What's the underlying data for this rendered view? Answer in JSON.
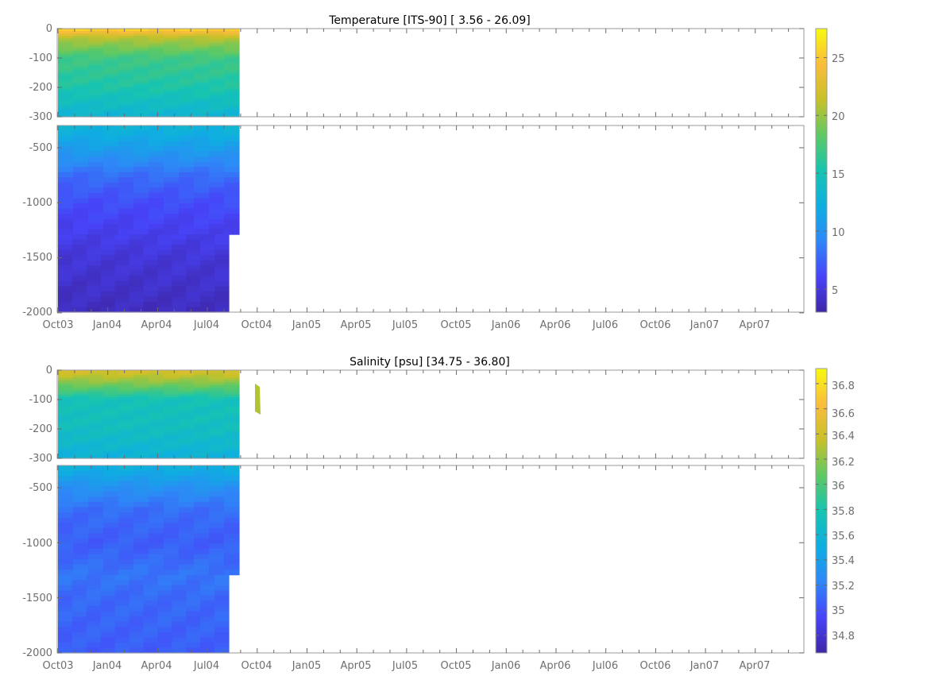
{
  "chart_data": [
    {
      "type": "heatmap",
      "title": "Temperature [ITS-90]   [ 3.56 - 26.09]",
      "x_ticks": [
        "Oct03",
        "Jan04",
        "Apr04",
        "Jul04",
        "Oct04",
        "Jan05",
        "Apr05",
        "Jul05",
        "Oct05",
        "Jan06",
        "Apr06",
        "Jul06",
        "Oct06",
        "Jan07",
        "Apr07"
      ],
      "upper_y_ticks": [
        "0",
        "-100",
        "-200",
        "-300"
      ],
      "lower_y_ticks": [
        "-500",
        "-1000",
        "-1500",
        "-2000"
      ],
      "upper_ylim": [
        -300,
        0
      ],
      "lower_ylim": [
        -2000,
        -300
      ],
      "colorbar_ticks": [
        "25",
        "20",
        "15",
        "10",
        "5"
      ],
      "colorbar_values": [
        25,
        20,
        15,
        10,
        5
      ],
      "colorbar_range": [
        3,
        27.5
      ],
      "data_range": [
        3.56,
        26.09
      ],
      "data_extent": "Oct03 - Aug04",
      "profile": [
        {
          "depth": 0,
          "value": 26
        },
        {
          "depth": -30,
          "value": 21
        },
        {
          "depth": -100,
          "value": 17
        },
        {
          "depth": -200,
          "value": 15.5
        },
        {
          "depth": -300,
          "value": 13
        },
        {
          "depth": -500,
          "value": 11
        },
        {
          "depth": -750,
          "value": 8
        },
        {
          "depth": -1000,
          "value": 6.5
        },
        {
          "depth": -1300,
          "value": 5.5
        },
        {
          "depth": -1500,
          "value": 4.8
        },
        {
          "depth": -2000,
          "value": 3.8
        }
      ]
    },
    {
      "type": "heatmap",
      "title": "Salinity [psu]   [34.75 - 36.80]",
      "x_ticks": [
        "Oct03",
        "Jan04",
        "Apr04",
        "Jul04",
        "Oct04",
        "Jan05",
        "Apr05",
        "Jul05",
        "Oct05",
        "Jan06",
        "Apr06",
        "Jul06",
        "Oct06",
        "Jan07",
        "Apr07"
      ],
      "upper_y_ticks": [
        "0",
        "-100",
        "-200",
        "-300"
      ],
      "lower_y_ticks": [
        "-500",
        "-1000",
        "-1500",
        "-2000"
      ],
      "upper_ylim": [
        -300,
        0
      ],
      "lower_ylim": [
        -2000,
        -300
      ],
      "colorbar_ticks": [
        "36.8",
        "36.6",
        "36.4",
        "36.2",
        "36",
        "35.8",
        "35.6",
        "35.4",
        "35.2",
        "35",
        "34.8"
      ],
      "colorbar_values": [
        36.8,
        36.6,
        36.4,
        36.2,
        36.0,
        35.8,
        35.6,
        35.4,
        35.2,
        35.0,
        34.8
      ],
      "colorbar_range": [
        34.66,
        36.92
      ],
      "data_range": [
        34.75,
        36.8
      ],
      "data_extent": "Oct03 - Aug04",
      "profile": [
        {
          "depth": 0,
          "value": 36.45
        },
        {
          "depth": -40,
          "value": 36.2
        },
        {
          "depth": -100,
          "value": 35.75
        },
        {
          "depth": -200,
          "value": 35.7
        },
        {
          "depth": -300,
          "value": 35.55
        },
        {
          "depth": -500,
          "value": 35.3
        },
        {
          "depth": -700,
          "value": 35.12
        },
        {
          "depth": -1000,
          "value": 35.05
        },
        {
          "depth": -1300,
          "value": 35.15
        },
        {
          "depth": -1500,
          "value": 35.1
        },
        {
          "depth": -2000,
          "value": 35.05
        }
      ]
    }
  ],
  "colormap": [
    "#3e26a8",
    "#4743f8",
    "#2e87f7",
    "#0eaee1",
    "#17c4b0",
    "#5fc963",
    "#c8c129",
    "#fbbc3c",
    "#f8fa0d"
  ]
}
